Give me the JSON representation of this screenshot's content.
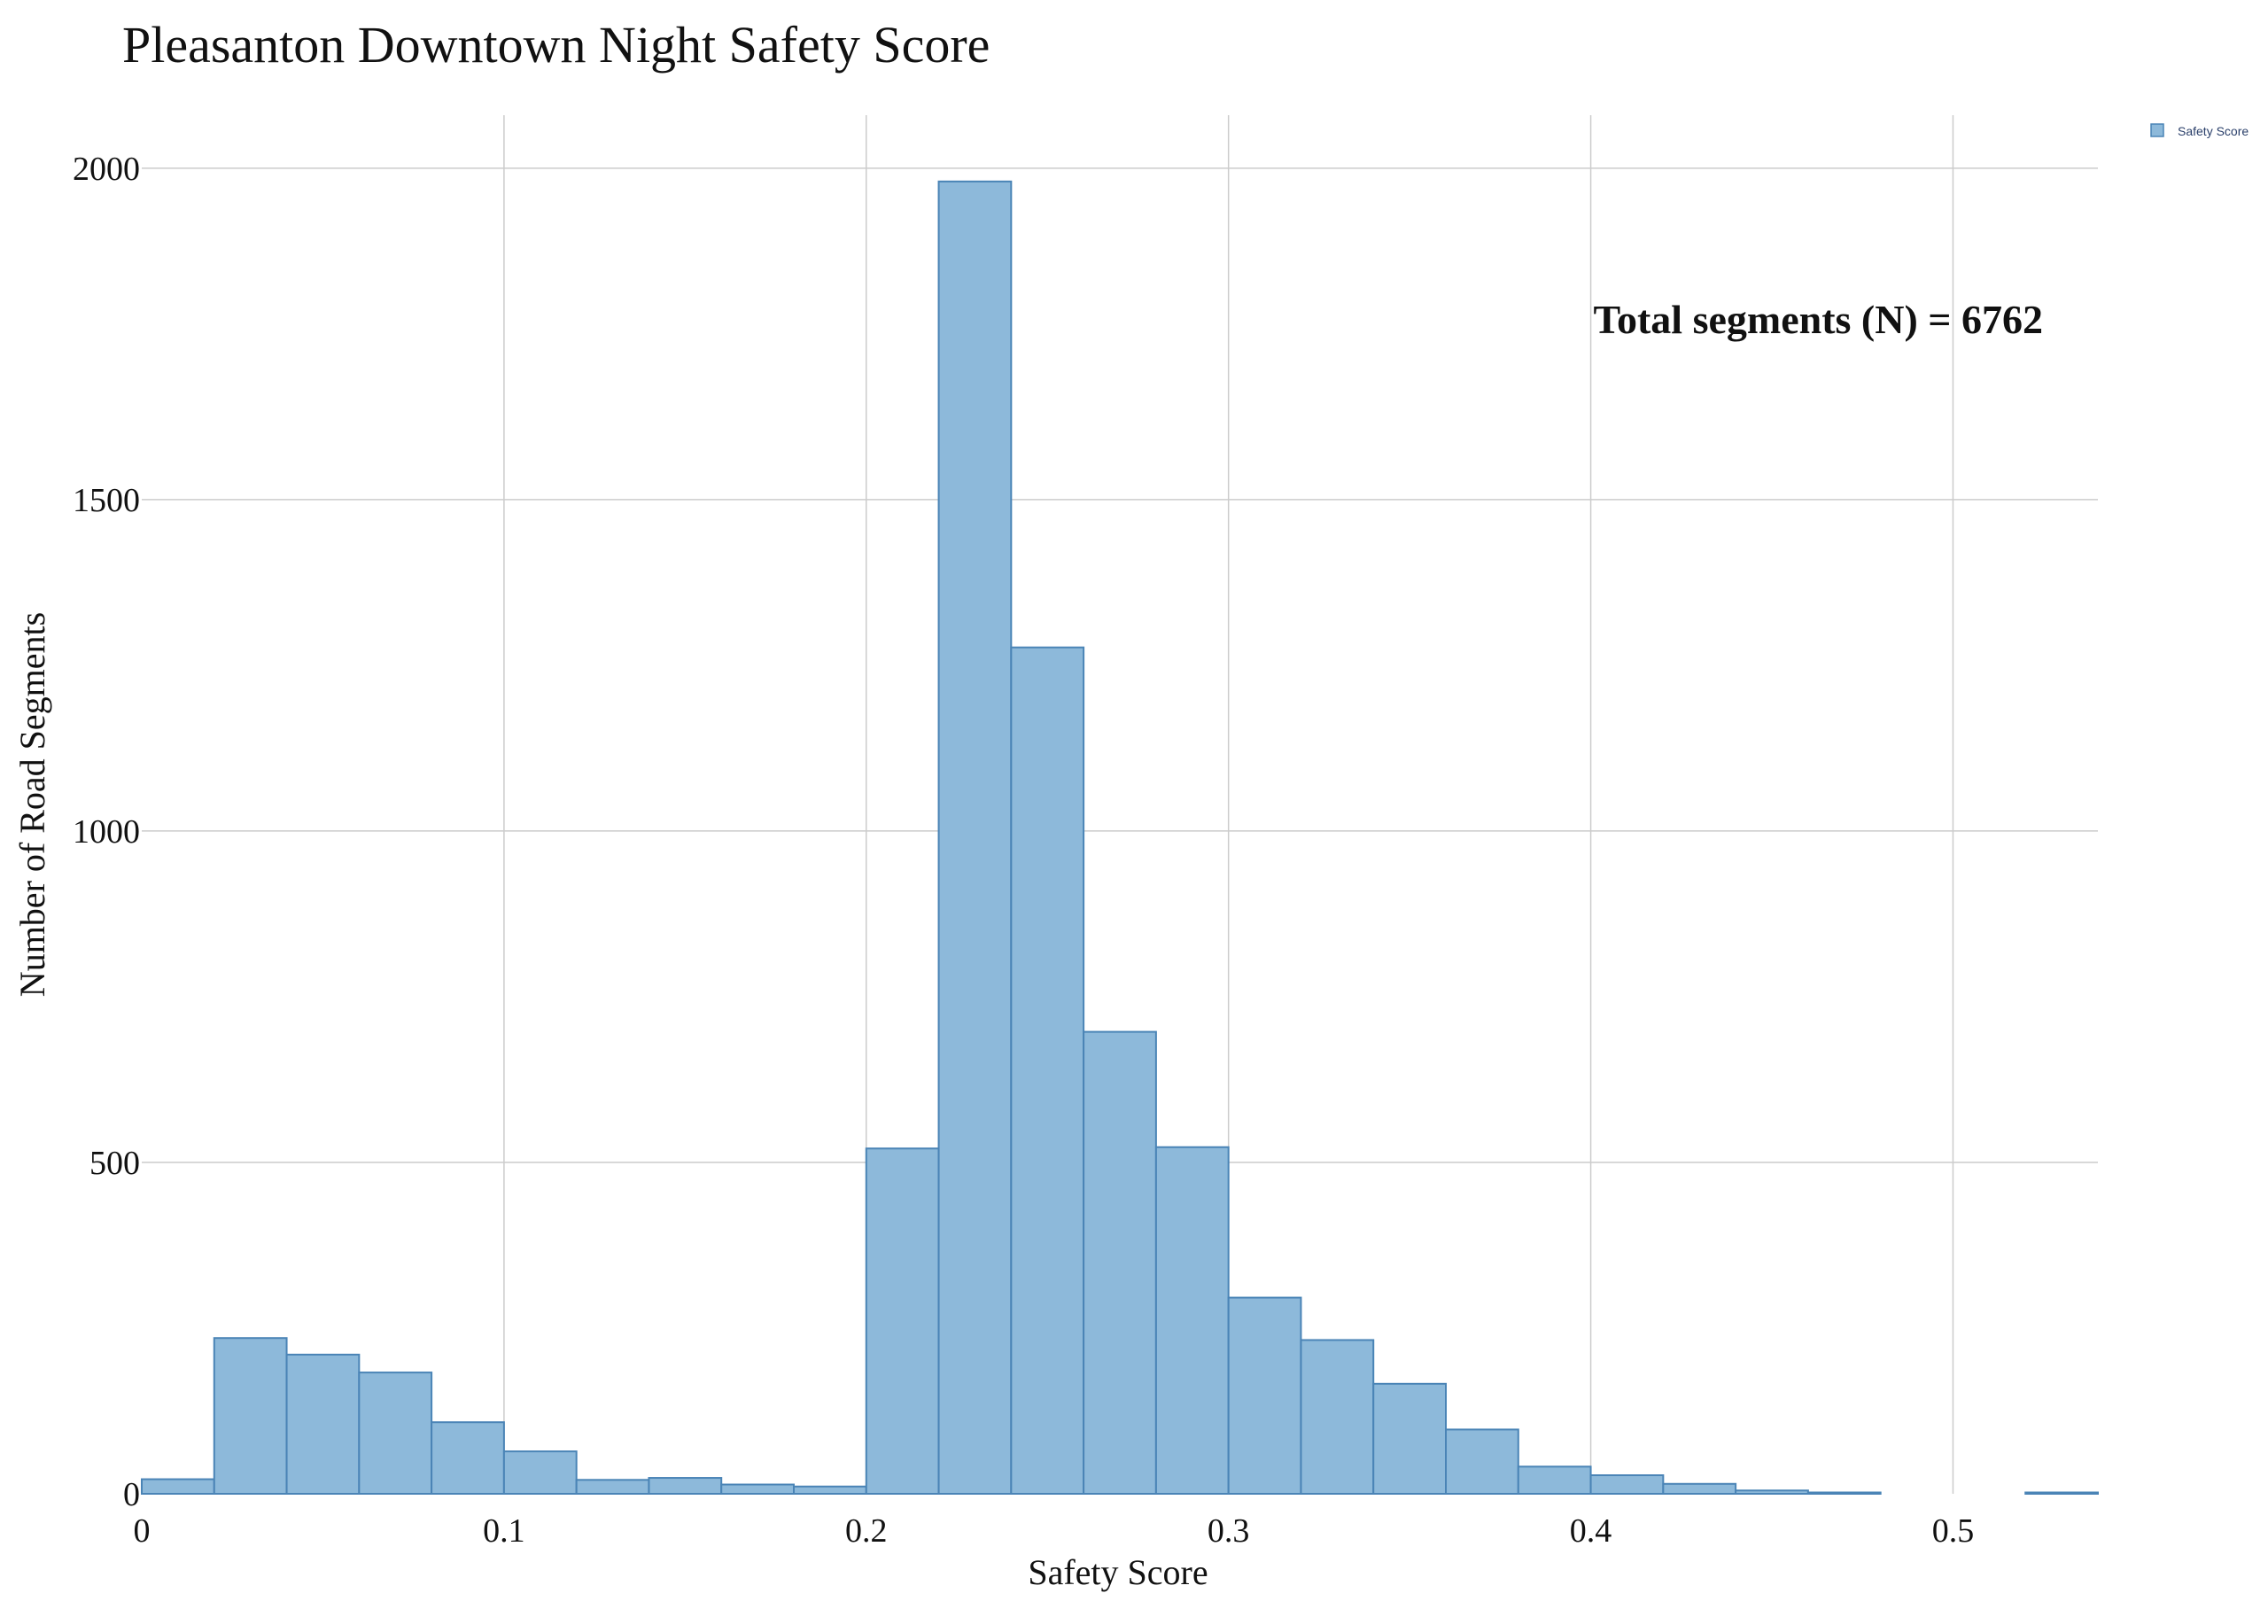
{
  "chart_data": {
    "type": "bar",
    "title": "Pleasanton Downtown Night Safety Score",
    "xlabel": "Safety Score",
    "ylabel": "Number of Road Segments",
    "xlim": [
      0,
      0.54
    ],
    "ylim": [
      0,
      2000
    ],
    "grid": true,
    "legend": {
      "position": "top-right",
      "entries": [
        "Safety Score"
      ]
    },
    "annotation": "Total segments (N) = 6762",
    "bin_width": 0.02,
    "x_ticks": [
      {
        "value": 0,
        "label": "0"
      },
      {
        "value": 0.1,
        "label": "0.1"
      },
      {
        "value": 0.2,
        "label": "0.2"
      },
      {
        "value": 0.3,
        "label": "0.3"
      },
      {
        "value": 0.4,
        "label": "0.4"
      },
      {
        "value": 0.5,
        "label": "0.5"
      }
    ],
    "y_ticks": [
      {
        "value": 0,
        "label": "0"
      },
      {
        "value": 500,
        "label": "500"
      },
      {
        "value": 1000,
        "label": "1000"
      },
      {
        "value": 1500,
        "label": "1500"
      },
      {
        "value": 2000,
        "label": "2000"
      }
    ],
    "series": [
      {
        "name": "Safety Score",
        "color": "#8db9da",
        "edge_color": "#4a84b6",
        "bins": [
          {
            "x0": 0.0,
            "x1": 0.02,
            "count": 22
          },
          {
            "x0": 0.02,
            "x1": 0.04,
            "count": 235
          },
          {
            "x0": 0.04,
            "x1": 0.06,
            "count": 210
          },
          {
            "x0": 0.06,
            "x1": 0.08,
            "count": 183
          },
          {
            "x0": 0.08,
            "x1": 0.1,
            "count": 108
          },
          {
            "x0": 0.1,
            "x1": 0.12,
            "count": 64
          },
          {
            "x0": 0.12,
            "x1": 0.14,
            "count": 21
          },
          {
            "x0": 0.14,
            "x1": 0.16,
            "count": 24
          },
          {
            "x0": 0.16,
            "x1": 0.18,
            "count": 14
          },
          {
            "x0": 0.18,
            "x1": 0.2,
            "count": 11
          },
          {
            "x0": 0.2,
            "x1": 0.22,
            "count": 521
          },
          {
            "x0": 0.22,
            "x1": 0.24,
            "count": 1980
          },
          {
            "x0": 0.24,
            "x1": 0.26,
            "count": 1277
          },
          {
            "x0": 0.26,
            "x1": 0.28,
            "count": 697
          },
          {
            "x0": 0.28,
            "x1": 0.3,
            "count": 523
          },
          {
            "x0": 0.3,
            "x1": 0.32,
            "count": 296
          },
          {
            "x0": 0.32,
            "x1": 0.34,
            "count": 232
          },
          {
            "x0": 0.34,
            "x1": 0.36,
            "count": 166
          },
          {
            "x0": 0.36,
            "x1": 0.38,
            "count": 97
          },
          {
            "x0": 0.38,
            "x1": 0.4,
            "count": 41
          },
          {
            "x0": 0.4,
            "x1": 0.42,
            "count": 28
          },
          {
            "x0": 0.42,
            "x1": 0.44,
            "count": 15
          },
          {
            "x0": 0.44,
            "x1": 0.46,
            "count": 5
          },
          {
            "x0": 0.46,
            "x1": 0.48,
            "count": 2
          },
          {
            "x0": 0.48,
            "x1": 0.5,
            "count": 0
          },
          {
            "x0": 0.5,
            "x1": 0.52,
            "count": 0
          },
          {
            "x0": 0.52,
            "x1": 0.54,
            "count": 2
          }
        ]
      }
    ]
  }
}
